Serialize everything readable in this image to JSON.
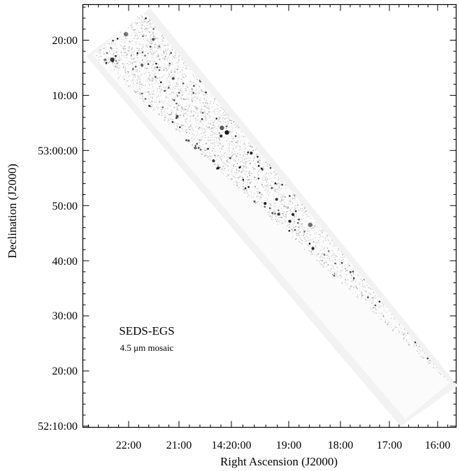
{
  "figure": {
    "x_axis_label": "Right Ascension (J2000)",
    "y_axis_label": "Declination (J2000)",
    "x_ticks": [
      "22:00",
      "21:00",
      "14:20:00",
      "19:00",
      "18:00",
      "17:00",
      "16:00"
    ],
    "y_ticks": [
      "20:00",
      "10:00",
      "53:00:00",
      "50:00",
      "40:00",
      "30:00",
      "20:00",
      "52:10:00"
    ],
    "annotation": {
      "title": "SEDS-EGS",
      "subtitle": "4.5 μm mosaic"
    },
    "colors": {
      "mosaic_background": "#f2f2f2",
      "mosaic_noise": "#7a7a7a",
      "source": "#111111"
    }
  }
}
